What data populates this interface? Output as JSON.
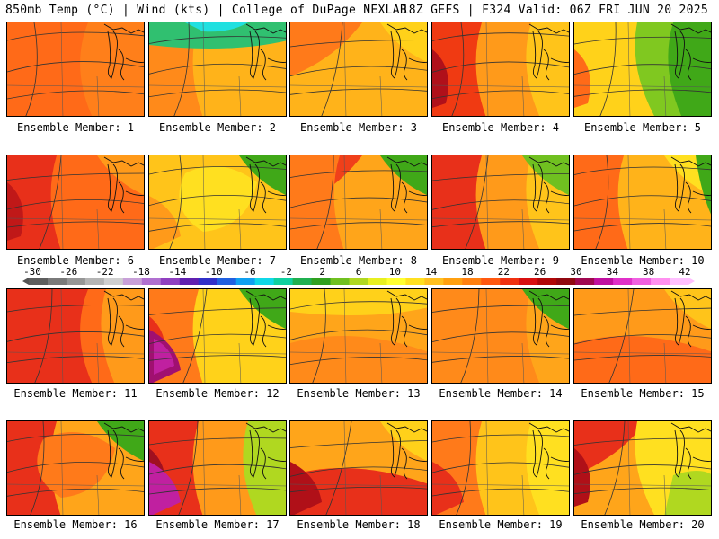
{
  "header": {
    "left_title": "850mb Temp (°C) | Wind (kts) | College of DuPage NEXLAB",
    "right_title": "18Z GEFS | F324 Valid: 06Z FRI JUN 20 2025"
  },
  "colorbar": {
    "labels": [
      "-30",
      "-26",
      "-22",
      "-18",
      "-14",
      "-10",
      "-6",
      "-2",
      "2",
      "6",
      "10",
      "14",
      "18",
      "22",
      "26",
      "30",
      "34",
      "38",
      "42"
    ],
    "colors": [
      "#5e5e5e",
      "#7a7a7a",
      "#969696",
      "#b4b4b4",
      "#cfcfcf",
      "#c8a0d8",
      "#b070d0",
      "#9040c0",
      "#6020b0",
      "#3030c8",
      "#2060e0",
      "#10a0f0",
      "#10d8e8",
      "#10d0a0",
      "#20b050",
      "#30a020",
      "#70c020",
      "#b0d820",
      "#e8f020",
      "#ffff30",
      "#ffe020",
      "#ffc020",
      "#ffa010",
      "#ff8010",
      "#ff5810",
      "#f03010",
      "#d81010",
      "#b00808",
      "#900810",
      "#a00850",
      "#c010a0",
      "#e030c8",
      "#f060e0",
      "#ff90f0",
      "#ffc0ff"
    ]
  },
  "members": [
    {
      "label": "Ensemble Member: 1",
      "base": "#ff7f1a",
      "blobs": [
        {
          "c": "#ff6a18",
          "s": "big-left"
        }
      ]
    },
    {
      "label": "Ensemble Member: 2",
      "base": "#ffb31a",
      "blobs": [
        {
          "c": "#ff8a1a",
          "s": "left"
        },
        {
          "c": "#30c070",
          "s": "top"
        },
        {
          "c": "#20e0e0",
          "s": "topcenter"
        }
      ]
    },
    {
      "label": "Ensemble Member: 3",
      "base": "#ffb31a",
      "blobs": [
        {
          "c": "#ff7a1a",
          "s": "topleft"
        },
        {
          "c": "#ffd11a",
          "s": "topright"
        }
      ]
    },
    {
      "label": "Ensemble Member: 4",
      "base": "#ff9a1a",
      "blobs": [
        {
          "c": "#f03a12",
          "s": "left"
        },
        {
          "c": "#b0101a",
          "s": "farleft"
        },
        {
          "c": "#ffc41a",
          "s": "right"
        }
      ]
    },
    {
      "label": "Ensemble Member: 5",
      "base": "#ffd21a",
      "blobs": [
        {
          "c": "#ff6a18",
          "s": "farleft"
        },
        {
          "c": "#80c820",
          "s": "center-right"
        },
        {
          "c": "#40a818",
          "s": "right"
        }
      ]
    },
    {
      "label": "Ensemble Member: 6",
      "base": "#ff6a18",
      "blobs": [
        {
          "c": "#e8301a",
          "s": "left"
        },
        {
          "c": "#c01818",
          "s": "farleft"
        },
        {
          "c": "#ff9a1a",
          "s": "topright"
        }
      ]
    },
    {
      "label": "Ensemble Member: 7",
      "base": "#ffc41a",
      "blobs": [
        {
          "c": "#ffe020",
          "s": "center"
        },
        {
          "c": "#40a818",
          "s": "topright"
        },
        {
          "c": "#ff9a1a",
          "s": "bottomleft"
        }
      ]
    },
    {
      "label": "Ensemble Member: 8",
      "base": "#ffa51a",
      "blobs": [
        {
          "c": "#f0401a",
          "s": "topleft"
        },
        {
          "c": "#ff7a1a",
          "s": "left"
        },
        {
          "c": "#40a818",
          "s": "topright"
        }
      ]
    },
    {
      "label": "Ensemble Member: 9",
      "base": "#ff9a1a",
      "blobs": [
        {
          "c": "#e8301a",
          "s": "left"
        },
        {
          "c": "#ffc41a",
          "s": "right"
        },
        {
          "c": "#70c020",
          "s": "topright"
        }
      ]
    },
    {
      "label": "Ensemble Member: 10",
      "base": "#ffb31a",
      "blobs": [
        {
          "c": "#ff6a18",
          "s": "left"
        },
        {
          "c": "#ffe020",
          "s": "topright"
        },
        {
          "c": "#40a818",
          "s": "farright"
        }
      ]
    },
    {
      "label": "Ensemble Member: 11",
      "base": "#ff6a18",
      "blobs": [
        {
          "c": "#e8301a",
          "s": "big-left"
        },
        {
          "c": "#ff9a1a",
          "s": "right"
        }
      ]
    },
    {
      "label": "Ensemble Member: 12",
      "base": "#ffd21a",
      "blobs": [
        {
          "c": "#ff7a1a",
          "s": "left"
        },
        {
          "c": "#e8301a",
          "s": "farleft"
        },
        {
          "c": "#a01070",
          "s": "bottomleft"
        },
        {
          "c": "#c020a0",
          "s": "bottomleft2"
        },
        {
          "c": "#40a818",
          "s": "topright"
        }
      ]
    },
    {
      "label": "Ensemble Member: 13",
      "base": "#ffa51a",
      "blobs": [
        {
          "c": "#ffd11a",
          "s": "top"
        },
        {
          "c": "#ff8a1a",
          "s": "bottom"
        }
      ]
    },
    {
      "label": "Ensemble Member: 14",
      "base": "#ff8a1a",
      "blobs": [
        {
          "c": "#ffa51a",
          "s": "right"
        },
        {
          "c": "#40a818",
          "s": "topright"
        }
      ]
    },
    {
      "label": "Ensemble Member: 15",
      "base": "#ff9a1a",
      "blobs": [
        {
          "c": "#ff6a18",
          "s": "bottom"
        },
        {
          "c": "#ffc41a",
          "s": "topright"
        }
      ]
    },
    {
      "label": "Ensemble Member: 16",
      "base": "#ffa51a",
      "blobs": [
        {
          "c": "#e8301a",
          "s": "left"
        },
        {
          "c": "#ff7a1a",
          "s": "center"
        },
        {
          "c": "#40a818",
          "s": "topright"
        }
      ]
    },
    {
      "label": "Ensemble Member: 17",
      "base": "#ff9a1a",
      "blobs": [
        {
          "c": "#e8301a",
          "s": "left"
        },
        {
          "c": "#a01020",
          "s": "farleft"
        },
        {
          "c": "#c020a0",
          "s": "bottomleft"
        },
        {
          "c": "#b0d820",
          "s": "right"
        }
      ]
    },
    {
      "label": "Ensemble Member: 18",
      "base": "#ffa51a",
      "blobs": [
        {
          "c": "#e8301a",
          "s": "bottom"
        },
        {
          "c": "#b01018",
          "s": "bottomleft"
        },
        {
          "c": "#ffd11a",
          "s": "topright"
        }
      ]
    },
    {
      "label": "Ensemble Member: 19",
      "base": "#ffc41a",
      "blobs": [
        {
          "c": "#ff7a1a",
          "s": "left"
        },
        {
          "c": "#e8301a",
          "s": "bottomleft"
        },
        {
          "c": "#ffe020",
          "s": "right"
        }
      ]
    },
    {
      "label": "Ensemble Member: 20",
      "base": "#ffa51a",
      "blobs": [
        {
          "c": "#e8301a",
          "s": "topleft"
        },
        {
          "c": "#b01018",
          "s": "farleft"
        },
        {
          "c": "#ffe020",
          "s": "center-right"
        },
        {
          "c": "#b0d820",
          "s": "bottomright"
        }
      ]
    }
  ]
}
